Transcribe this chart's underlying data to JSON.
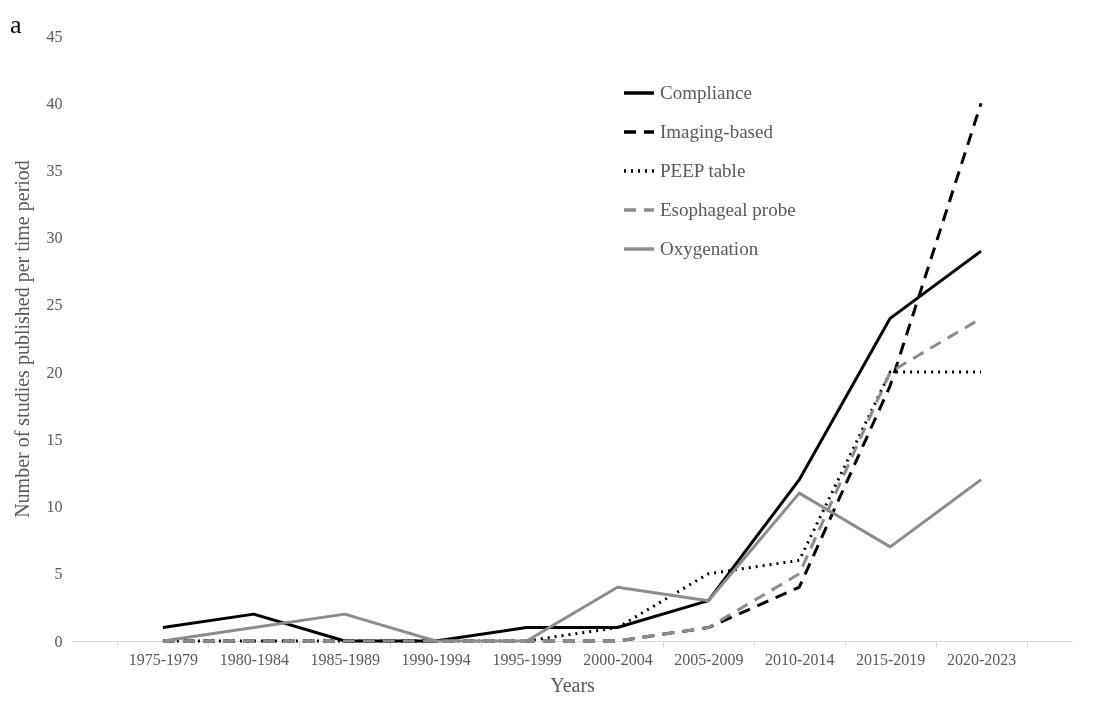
{
  "chart_data": {
    "type": "line",
    "xlabel": "Years",
    "ylabel": "Number of studies published per time period",
    "annotations": [
      "a"
    ],
    "categories": [
      "1975-1979",
      "1980-1984",
      "1985-1989",
      "1990-1994",
      "1995-1999",
      "2000-2004",
      "2005-2009",
      "2010-2014",
      "2015-2019",
      "2020-2023"
    ],
    "series": [
      {
        "name": "Compliance",
        "color": "#000000",
        "line_style": "solid",
        "values": [
          1,
          2,
          0,
          0,
          1,
          1,
          3,
          12,
          24,
          29
        ]
      },
      {
        "name": "Imaging-based",
        "color": "#000000",
        "line_style": "dashed",
        "values": [
          0,
          0,
          0,
          0,
          0,
          0,
          1,
          4,
          19,
          40
        ]
      },
      {
        "name": "PEEP table",
        "color": "#000000",
        "line_style": "dotted",
        "values": [
          0,
          0,
          0,
          0,
          0,
          1,
          5,
          6,
          20,
          20
        ]
      },
      {
        "name": "Esophageal probe",
        "color": "#8c8c8c",
        "line_style": "dashed",
        "values": [
          0,
          0,
          0,
          0,
          0,
          0,
          1,
          5,
          20,
          24
        ]
      },
      {
        "name": "Oxygenation",
        "color": "#8c8c8c",
        "line_style": "solid",
        "values": [
          0,
          1,
          2,
          0,
          0,
          4,
          3,
          11,
          7,
          12
        ]
      }
    ],
    "ylim": [
      0,
      45
    ],
    "yticks": [
      0,
      5,
      10,
      15,
      20,
      25,
      30,
      35,
      40,
      45
    ],
    "grid": false,
    "legend": "top right",
    "marker": "none"
  }
}
